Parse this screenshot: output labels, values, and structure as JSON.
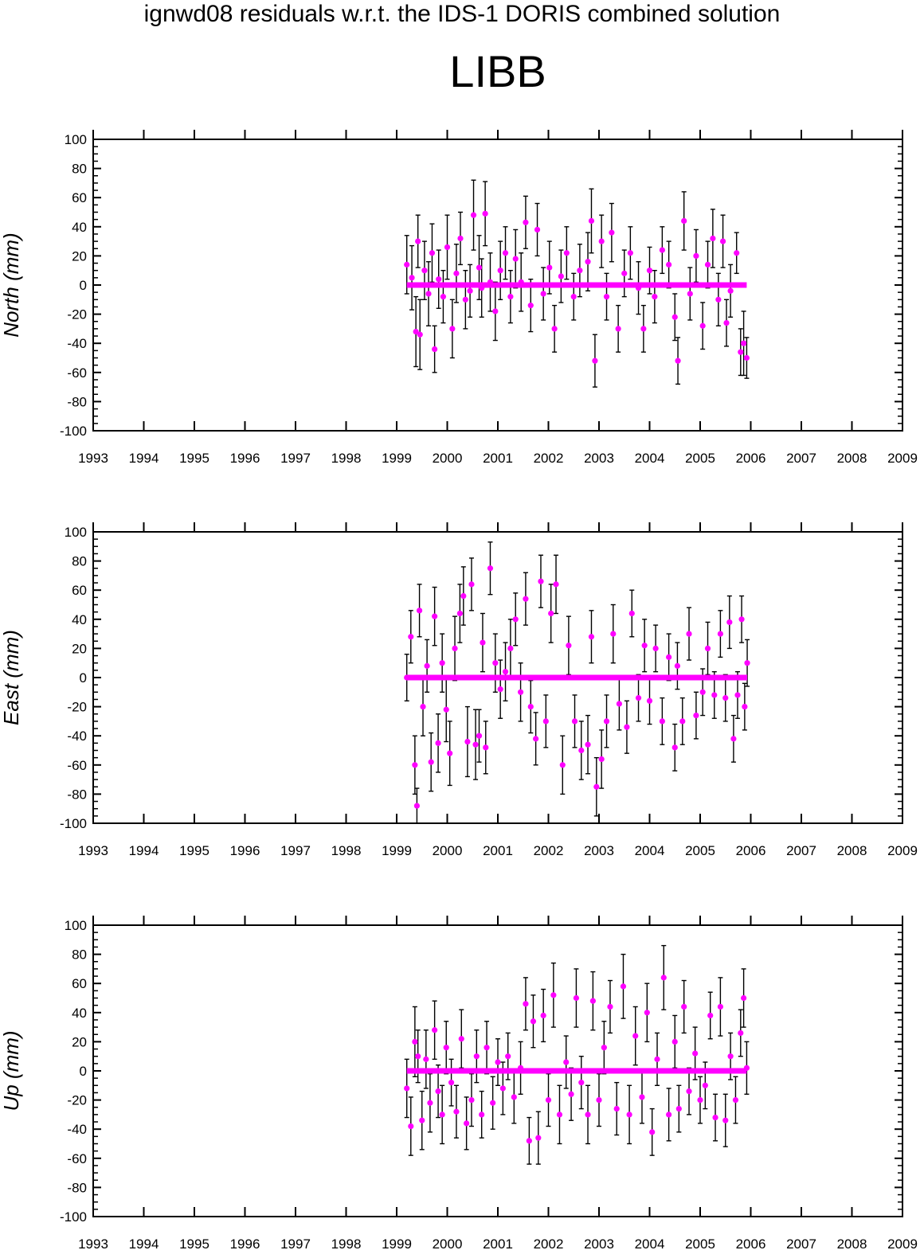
{
  "figure": {
    "title": "ignwd08 residuals w.r.t. the IDS-1 DORIS combined solution",
    "station": "LIBB"
  },
  "colors": {
    "marker": "#ff00ff",
    "error_bar": "#000000",
    "axes": "#000000"
  },
  "chart_data": [
    {
      "type": "scatter",
      "panel": "north",
      "ylabel": "North (mm)",
      "xlim": [
        1993,
        2009
      ],
      "ylim": [
        -100,
        100
      ],
      "x_ticks": [
        "1993",
        "1994",
        "1995",
        "1996",
        "1997",
        "1998",
        "1999",
        "2000",
        "2001",
        "2002",
        "2003",
        "2004",
        "2005",
        "2006",
        "2007",
        "2008",
        "2009"
      ],
      "y_ticks": [
        "-100",
        "-80",
        "-60",
        "-40",
        "-20",
        "0",
        "20",
        "40",
        "60",
        "80",
        "100"
      ],
      "error_bars": true,
      "zero_line": true,
      "series": [
        {
          "x": [
            1999.2,
            1999.3,
            1999.38,
            1999.42,
            1999.46,
            1999.55,
            1999.63,
            1999.7,
            1999.75,
            1999.83,
            1999.92,
            2000.0,
            2000.1,
            2000.18,
            2000.26,
            2000.36,
            2000.45,
            2000.52,
            2000.63,
            2000.68,
            2000.75,
            2000.85,
            2000.95,
            2001.05,
            2001.15,
            2001.25,
            2001.35,
            2001.46,
            2001.55,
            2001.65,
            2001.78,
            2001.9,
            2002.02,
            2002.12,
            2002.25,
            2002.36,
            2002.5,
            2002.62,
            2002.78,
            2002.85,
            2002.92,
            2003.05,
            2003.15,
            2003.25,
            2003.38,
            2003.5,
            2003.62,
            2003.78,
            2003.88,
            2004.0,
            2004.1,
            2004.25,
            2004.38,
            2004.5,
            2004.56,
            2004.68,
            2004.8,
            2004.92,
            2005.05,
            2005.15,
            2005.25,
            2005.36,
            2005.45,
            2005.52,
            2005.6,
            2005.72,
            2005.8,
            2005.86,
            2005.92
          ],
          "y": [
            14,
            5,
            -32,
            30,
            -34,
            10,
            -6,
            22,
            -44,
            4,
            -8,
            26,
            -30,
            8,
            32,
            -10,
            -4,
            48,
            12,
            -2,
            49,
            2,
            -18,
            10,
            22,
            -8,
            18,
            2,
            43,
            -14,
            38,
            -6,
            12,
            -30,
            6,
            22,
            -8,
            10,
            16,
            44,
            -52,
            30,
            -8,
            36,
            -30,
            8,
            22,
            -2,
            -30,
            10,
            -8,
            24,
            14,
            -22,
            -52,
            44,
            -6,
            20,
            -28,
            14,
            32,
            -10,
            30,
            -26,
            -4,
            22,
            -46,
            -40,
            -50
          ],
          "err": [
            20,
            22,
            24,
            18,
            24,
            20,
            22,
            20,
            16,
            20,
            18,
            22,
            20,
            20,
            18,
            20,
            18,
            24,
            22,
            20,
            22,
            20,
            20,
            20,
            18,
            18,
            20,
            20,
            18,
            18,
            18,
            18,
            18,
            16,
            18,
            18,
            16,
            18,
            20,
            22,
            18,
            18,
            16,
            20,
            16,
            16,
            18,
            18,
            16,
            16,
            18,
            16,
            16,
            16,
            16,
            20,
            18,
            18,
            16,
            16,
            20,
            18,
            18,
            16,
            18,
            14,
            16,
            22,
            14
          ]
        }
      ]
    },
    {
      "type": "scatter",
      "panel": "east",
      "ylabel": "East (mm)",
      "xlim": [
        1993,
        2009
      ],
      "ylim": [
        -100,
        100
      ],
      "x_ticks": [
        "1993",
        "1994",
        "1995",
        "1996",
        "1997",
        "1998",
        "1999",
        "2000",
        "2001",
        "2002",
        "2003",
        "2004",
        "2005",
        "2006",
        "2007",
        "2008",
        "2009"
      ],
      "y_ticks": [
        "-100",
        "-80",
        "-60",
        "-40",
        "-20",
        "0",
        "20",
        "40",
        "60",
        "80",
        "100"
      ],
      "error_bars": true,
      "zero_line": true,
      "series": [
        {
          "x": [
            1999.2,
            1999.28,
            1999.36,
            1999.4,
            1999.45,
            1999.52,
            1999.6,
            1999.68,
            1999.75,
            1999.82,
            1999.9,
            1999.98,
            2000.05,
            2000.15,
            2000.25,
            2000.32,
            2000.4,
            2000.48,
            2000.56,
            2000.63,
            2000.7,
            2000.76,
            2000.85,
            2000.95,
            2001.05,
            2001.15,
            2001.25,
            2001.35,
            2001.45,
            2001.55,
            2001.65,
            2001.75,
            2001.85,
            2001.95,
            2002.05,
            2002.15,
            2002.28,
            2002.4,
            2002.52,
            2002.65,
            2002.78,
            2002.85,
            2002.95,
            2003.05,
            2003.15,
            2003.28,
            2003.4,
            2003.55,
            2003.65,
            2003.78,
            2003.9,
            2004.0,
            2004.12,
            2004.25,
            2004.38,
            2004.5,
            2004.55,
            2004.65,
            2004.78,
            2004.92,
            2005.05,
            2005.15,
            2005.28,
            2005.4,
            2005.5,
            2005.58,
            2005.66,
            2005.74,
            2005.82,
            2005.88,
            2005.93
          ],
          "y": [
            0,
            28,
            -60,
            -88,
            46,
            -20,
            8,
            -58,
            42,
            -45,
            10,
            -22,
            -52,
            20,
            44,
            56,
            -44,
            64,
            -46,
            -40,
            24,
            -48,
            75,
            10,
            -8,
            4,
            20,
            40,
            -10,
            54,
            -20,
            -42,
            66,
            -30,
            44,
            64,
            -60,
            22,
            -30,
            -50,
            -46,
            28,
            -75,
            -56,
            -30,
            30,
            -18,
            -34,
            44,
            -14,
            22,
            -16,
            20,
            -30,
            14,
            -48,
            8,
            -30,
            30,
            -26,
            -10,
            20,
            -12,
            30,
            -14,
            38,
            -42,
            -12,
            40,
            -20,
            10
          ],
          "err": [
            16,
            18,
            20,
            12,
            18,
            20,
            18,
            20,
            20,
            20,
            20,
            22,
            22,
            22,
            20,
            20,
            24,
            18,
            24,
            18,
            20,
            18,
            18,
            20,
            20,
            20,
            20,
            18,
            20,
            18,
            18,
            18,
            18,
            18,
            20,
            20,
            20,
            20,
            18,
            20,
            20,
            18,
            20,
            20,
            18,
            20,
            18,
            18,
            16,
            16,
            18,
            16,
            16,
            16,
            16,
            16,
            16,
            16,
            18,
            16,
            16,
            18,
            16,
            16,
            16,
            18,
            16,
            16,
            16,
            16,
            16
          ]
        }
      ]
    },
    {
      "type": "scatter",
      "panel": "up",
      "ylabel": "Up (mm)",
      "xlim": [
        1993,
        2009
      ],
      "ylim": [
        -100,
        100
      ],
      "x_ticks": [
        "1993",
        "1994",
        "1995",
        "1996",
        "1997",
        "1998",
        "1999",
        "2000",
        "2001",
        "2002",
        "2003",
        "2004",
        "2005",
        "2006",
        "2007",
        "2008",
        "2009"
      ],
      "y_ticks": [
        "-100",
        "-80",
        "-60",
        "-40",
        "-20",
        "0",
        "20",
        "40",
        "60",
        "80",
        "100"
      ],
      "error_bars": true,
      "zero_line": true,
      "series": [
        {
          "x": [
            1999.2,
            1999.28,
            1999.36,
            1999.42,
            1999.5,
            1999.58,
            1999.66,
            1999.75,
            1999.82,
            1999.9,
            1999.98,
            2000.08,
            2000.18,
            2000.28,
            2000.38,
            2000.48,
            2000.58,
            2000.68,
            2000.78,
            2000.9,
            2001.0,
            2001.1,
            2001.2,
            2001.32,
            2001.45,
            2001.55,
            2001.62,
            2001.7,
            2001.8,
            2001.9,
            2002.0,
            2002.1,
            2002.22,
            2002.35,
            2002.45,
            2002.55,
            2002.65,
            2002.78,
            2002.88,
            2003.0,
            2003.1,
            2003.22,
            2003.35,
            2003.48,
            2003.6,
            2003.72,
            2003.85,
            2003.95,
            2004.05,
            2004.15,
            2004.28,
            2004.38,
            2004.5,
            2004.58,
            2004.68,
            2004.78,
            2004.9,
            2005.0,
            2005.1,
            2005.2,
            2005.3,
            2005.4,
            2005.5,
            2005.6,
            2005.7,
            2005.8,
            2005.86,
            2005.92
          ],
          "y": [
            -12,
            -38,
            20,
            10,
            -34,
            8,
            -22,
            28,
            -14,
            -30,
            16,
            -8,
            -28,
            22,
            -36,
            -20,
            10,
            -30,
            16,
            -22,
            6,
            -12,
            10,
            -18,
            2,
            46,
            -48,
            34,
            -46,
            38,
            -20,
            52,
            -30,
            6,
            -16,
            50,
            -8,
            -30,
            48,
            -20,
            16,
            44,
            -26,
            58,
            -30,
            24,
            -18,
            40,
            -42,
            8,
            64,
            -30,
            20,
            -26,
            44,
            -14,
            12,
            -20,
            -10,
            38,
            -32,
            44,
            -34,
            10,
            -20,
            26,
            50,
            2
          ],
          "err": [
            20,
            20,
            24,
            18,
            20,
            20,
            20,
            20,
            18,
            20,
            18,
            16,
            18,
            20,
            18,
            18,
            18,
            16,
            18,
            18,
            16,
            18,
            16,
            18,
            18,
            18,
            16,
            18,
            18,
            18,
            18,
            22,
            20,
            18,
            18,
            20,
            18,
            20,
            20,
            18,
            18,
            18,
            18,
            22,
            20,
            20,
            18,
            20,
            16,
            18,
            22,
            18,
            18,
            16,
            18,
            16,
            18,
            16,
            16,
            16,
            16,
            20,
            18,
            16,
            16,
            16,
            20,
            18
          ]
        }
      ]
    }
  ]
}
